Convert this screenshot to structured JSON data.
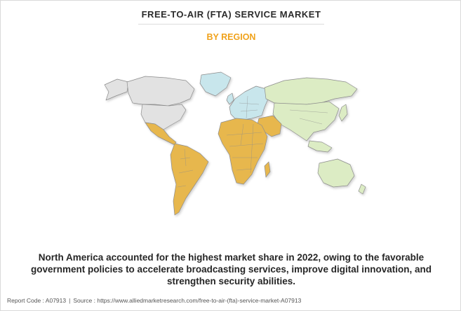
{
  "header": {
    "title": "FREE-TO-AIR (FTA) SERVICE MARKET",
    "subtitle": "BY REGION"
  },
  "map": {
    "region_colors": {
      "north_america": "#e2e2e2",
      "europe": "#c8e6ec",
      "asia_pacific": "#dcecc4",
      "latin_america_middle_east_africa": "#e7b74e",
      "outline": "#8c8c8c"
    }
  },
  "summary": {
    "text": "North America accounted for the highest market share in 2022, owing to the favorable government policies to accelerate broadcasting services, improve digital innovation, and strengthen security abilities."
  },
  "footer": {
    "report_code": "Report Code : A07913",
    "separator": "|",
    "source": "Source : https://www.alliedmarketresearch.com/free-to-air-(fta)-service-market-A07913"
  }
}
